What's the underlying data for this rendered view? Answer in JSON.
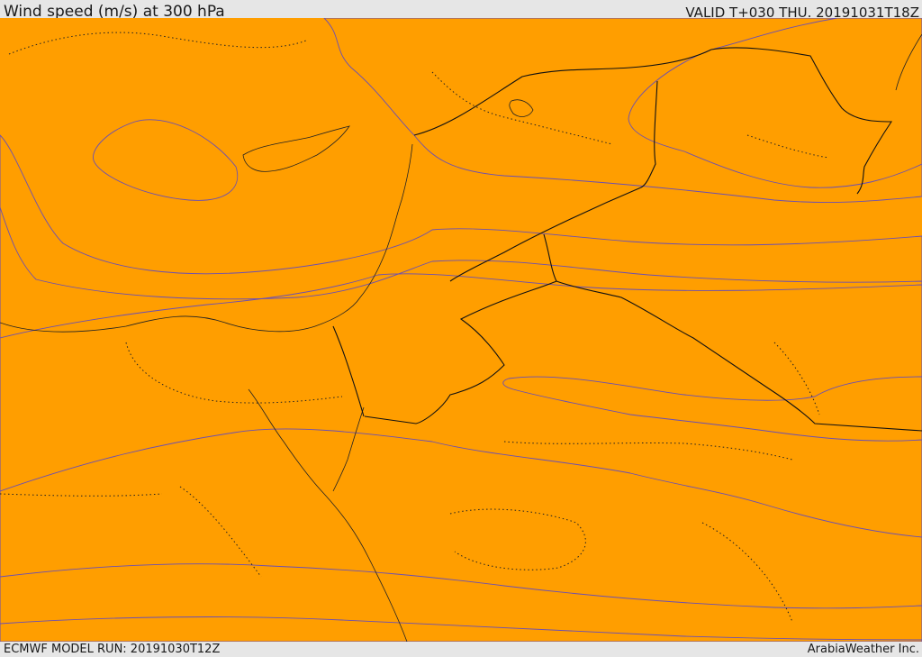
{
  "header": {
    "title": "Wind speed (m/s) at 300 hPa",
    "valid_time": "VALID T+030 THU. 20191031T18Z"
  },
  "footer": {
    "model_run": "ECMWF MODEL RUN: 20191030T12Z",
    "credit": "ArabiaWeather Inc."
  },
  "map": {
    "variable": "wind speed",
    "units": "m/s",
    "level_hpa": 300,
    "shading_colors": {
      "band_1": "#ff9e00",
      "band_2": "#ffc000",
      "band_3": "#ffe100",
      "band_4": "#ff8200",
      "band_5": "#ff6000",
      "band_6": "#ff4400",
      "band_7": "#ff2a00"
    },
    "contour_color": "#6a4fb3"
  }
}
